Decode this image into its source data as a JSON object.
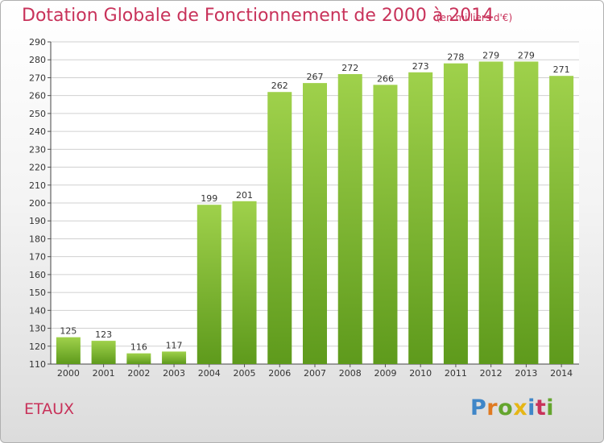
{
  "header": {
    "title": "Dotation Globale de Fonctionnement de 2000 à 2014",
    "unit": "(en milliers d'€)"
  },
  "footer": {
    "commune": "ETAUX",
    "logo": [
      "P",
      "r",
      "o",
      "x",
      "i",
      "t",
      "i"
    ]
  },
  "colors": {
    "title": "#c8325a",
    "bar_top": "#9fd14b",
    "bar_bottom": "#5e9a1c",
    "grid": "#d0d0d0"
  },
  "chart_data": {
    "type": "bar",
    "title": "Dotation Globale de Fonctionnement de 2000 à 2014",
    "subtitle": "(en milliers d'€)",
    "categories": [
      "2000",
      "2001",
      "2002",
      "2003",
      "2004",
      "2005",
      "2006",
      "2007",
      "2008",
      "2009",
      "2010",
      "2011",
      "2012",
      "2013",
      "2014"
    ],
    "values": [
      125,
      123,
      116,
      117,
      199,
      201,
      262,
      267,
      272,
      266,
      273,
      278,
      279,
      279,
      271
    ],
    "ylim": [
      110,
      290
    ],
    "yticks": [
      110,
      120,
      130,
      140,
      150,
      160,
      170,
      180,
      190,
      200,
      210,
      220,
      230,
      240,
      250,
      260,
      270,
      280,
      290
    ],
    "grid": true,
    "xlabel": "",
    "ylabel": ""
  }
}
